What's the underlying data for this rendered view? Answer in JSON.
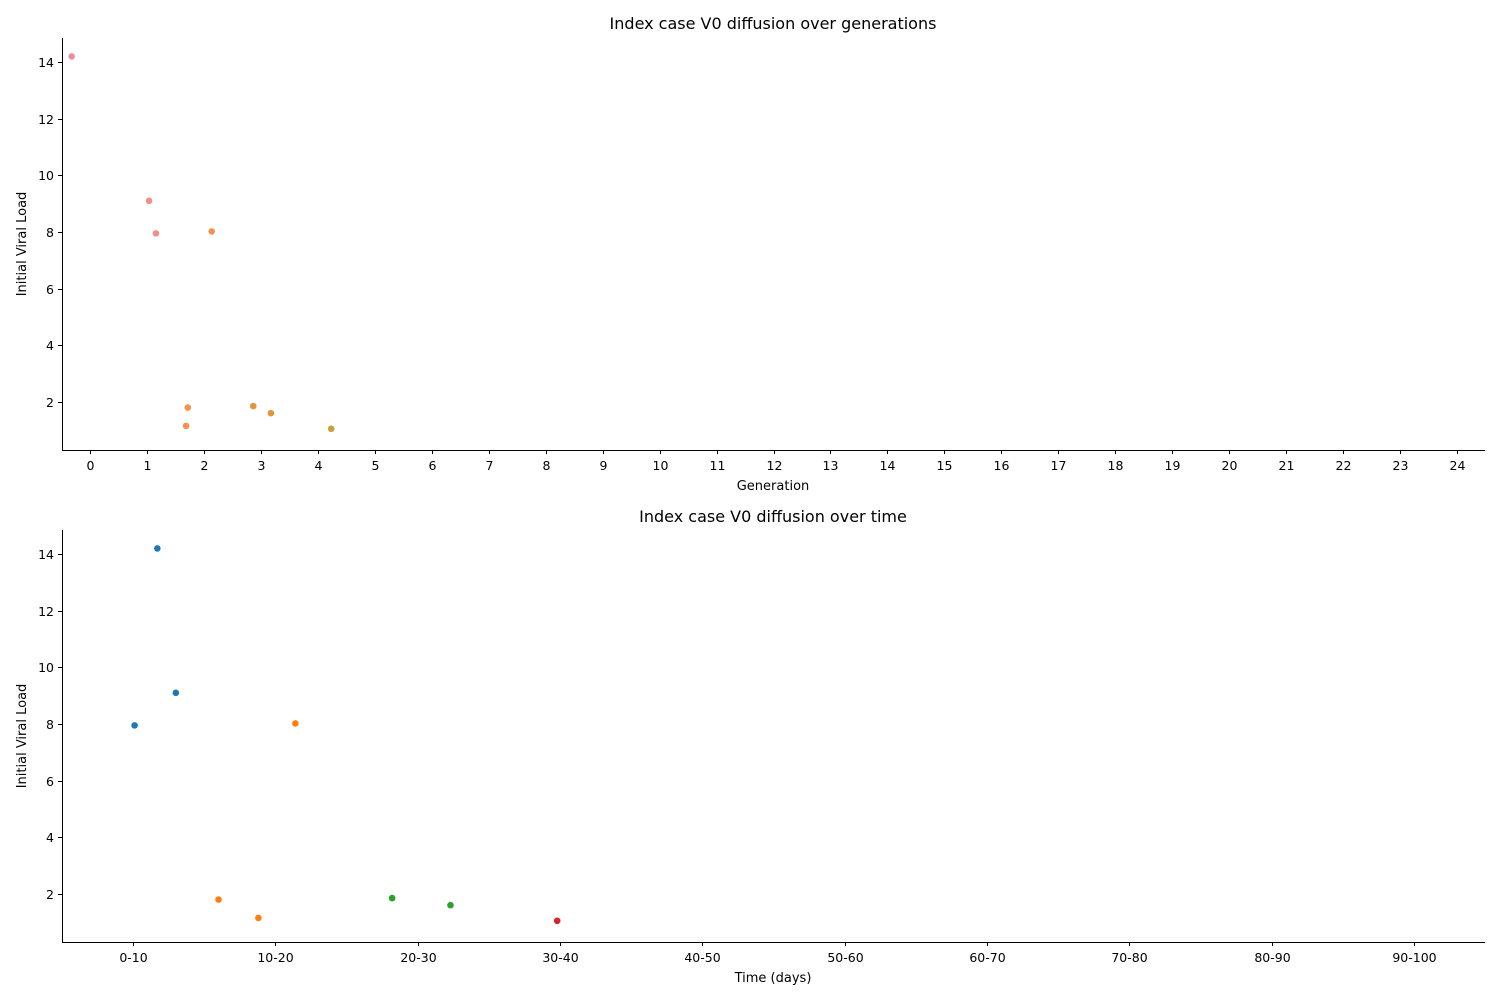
{
  "chart_data": [
    {
      "type": "scatter",
      "title": "Index case V0 diffusion over generations",
      "xlabel": "Generation",
      "ylabel": "Initial Viral Load",
      "x_ticks": [
        "0",
        "1",
        "2",
        "3",
        "4",
        "5",
        "6",
        "7",
        "8",
        "9",
        "10",
        "11",
        "12",
        "13",
        "14",
        "15",
        "16",
        "17",
        "18",
        "19",
        "20",
        "21",
        "22",
        "23",
        "24"
      ],
      "y_ticks": [
        "2",
        "4",
        "6",
        "8",
        "10",
        "12",
        "14"
      ],
      "xlim": [
        -0.5,
        24.5
      ],
      "ylim": [
        0.3,
        14.85
      ],
      "x_jitter_categorical": true,
      "grid": false,
      "points": [
        {
          "x": -0.33,
          "y": 14.2,
          "color": "#f08ca0"
        },
        {
          "x": 1.03,
          "y": 9.1,
          "color": "#f28e86"
        },
        {
          "x": 1.15,
          "y": 7.95,
          "color": "#f28e86"
        },
        {
          "x": 2.13,
          "y": 8.02,
          "color": "#f2924e"
        },
        {
          "x": 1.71,
          "y": 1.8,
          "color": "#f2924e"
        },
        {
          "x": 1.68,
          "y": 1.15,
          "color": "#f2924e"
        },
        {
          "x": 2.86,
          "y": 1.85,
          "color": "#e0963e"
        },
        {
          "x": 3.17,
          "y": 1.6,
          "color": "#e0963e"
        },
        {
          "x": 4.23,
          "y": 1.05,
          "color": "#c5a138"
        }
      ]
    },
    {
      "type": "scatter",
      "title": "Index case V0 diffusion over time",
      "xlabel": "Time (days)",
      "ylabel": "Initial Viral Load",
      "x_ticks": [
        "0-10",
        "10-20",
        "20-30",
        "30-40",
        "40-50",
        "50-60",
        "60-70",
        "70-80",
        "80-90",
        "90-100"
      ],
      "y_ticks": [
        "2",
        "4",
        "6",
        "8",
        "10",
        "12",
        "14"
      ],
      "xlim": [
        -0.5,
        9.5
      ],
      "ylim": [
        0.3,
        14.85
      ],
      "x_jitter_categorical": true,
      "grid": false,
      "points": [
        {
          "x": 0.17,
          "y": 14.2,
          "color": "#1f77b4"
        },
        {
          "x": 0.3,
          "y": 9.1,
          "color": "#1f77b4"
        },
        {
          "x": 0.01,
          "y": 7.95,
          "color": "#1f77b4"
        },
        {
          "x": 1.14,
          "y": 8.02,
          "color": "#ff7f0e"
        },
        {
          "x": 0.6,
          "y": 1.8,
          "color": "#ff7f0e"
        },
        {
          "x": 0.88,
          "y": 1.15,
          "color": "#ff7f0e"
        },
        {
          "x": 1.82,
          "y": 1.85,
          "color": "#2ca02c"
        },
        {
          "x": 2.23,
          "y": 1.6,
          "color": "#2ca02c"
        },
        {
          "x": 2.98,
          "y": 1.05,
          "color": "#d62728"
        }
      ]
    }
  ]
}
